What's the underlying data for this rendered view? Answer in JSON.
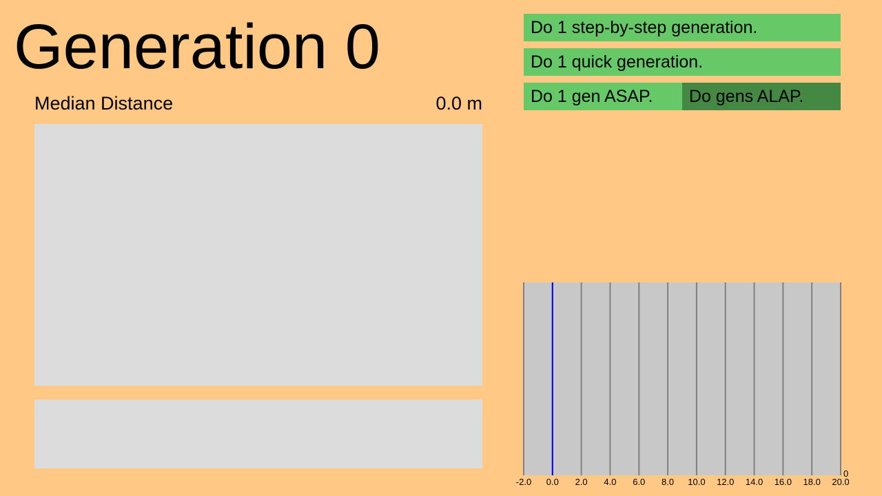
{
  "header": {
    "generation_title": "Generation 0"
  },
  "stats": {
    "median_distance_label": "Median Distance",
    "median_distance_value": "0.0 m"
  },
  "controls": {
    "step_by_step_label": "Do 1 step-by-step generation.",
    "quick_label": "Do 1 quick generation.",
    "asap_label": "Do 1 gen ASAP.",
    "alap_label": "Do gens ALAP."
  },
  "colors": {
    "background": "#ffc885",
    "button_light": "#66c866",
    "button_dark": "#448844",
    "panel": "#dcdcdc",
    "histogram_bg": "#c8c8c8",
    "histogram_gridline": "#808080",
    "histogram_zero_line": "#0000ff"
  },
  "chart_data": {
    "type": "bar",
    "x_ticks": [
      "-2.0",
      "0.0",
      "2.0",
      "4.0",
      "6.0",
      "8.0",
      "10.0",
      "12.0",
      "14.0",
      "16.0",
      "18.0",
      "20.0"
    ],
    "x_range": [
      -2,
      20
    ],
    "y_max_label": "0",
    "marker_x": 0.0,
    "values": [],
    "grid": true
  }
}
